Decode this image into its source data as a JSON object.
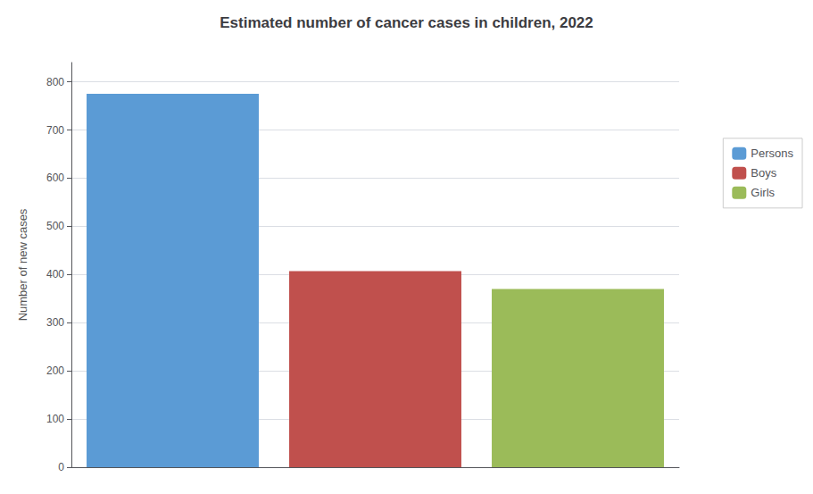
{
  "chart_data": {
    "type": "bar",
    "title": "Estimated number of cancer cases in children, 2022",
    "categories": [
      "Persons",
      "Boys",
      "Girls"
    ],
    "values": [
      775,
      407,
      370
    ],
    "colors": [
      "#5b9bd5",
      "#c0504d",
      "#9bbb59"
    ],
    "ylabel": "Number of new cases",
    "ylim": [
      0,
      840
    ],
    "yticks": [
      0,
      100,
      200,
      300,
      400,
      500,
      600,
      700,
      800
    ],
    "grid": true,
    "legend": "right",
    "tick_labels": "y"
  }
}
